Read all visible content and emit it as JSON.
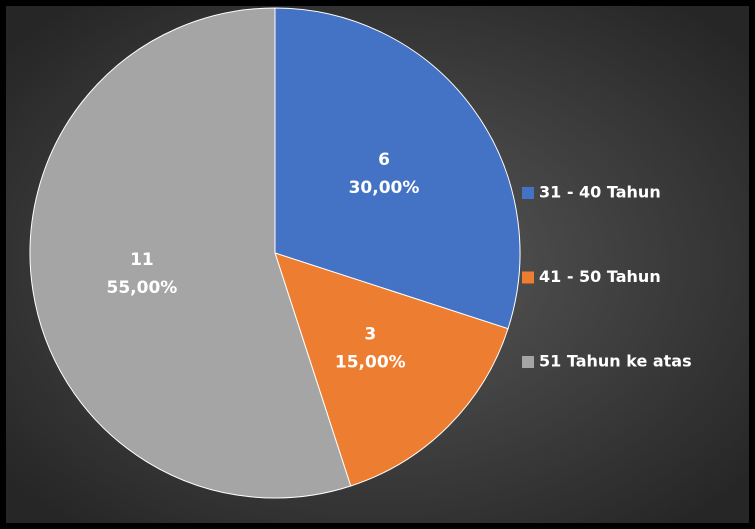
{
  "chart_data": {
    "type": "pie",
    "categories": [
      "31 - 40 Tahun",
      "41 - 50 Tahun",
      "51 Tahun ke atas"
    ],
    "values": [
      6,
      3,
      11
    ],
    "percents": [
      30,
      15,
      55
    ],
    "percent_labels": [
      "30,00%",
      "15,00%",
      "55,00%"
    ],
    "colors": [
      "#4472c4",
      "#ed7d31",
      "#a5a5a5"
    ],
    "legend": "right"
  }
}
